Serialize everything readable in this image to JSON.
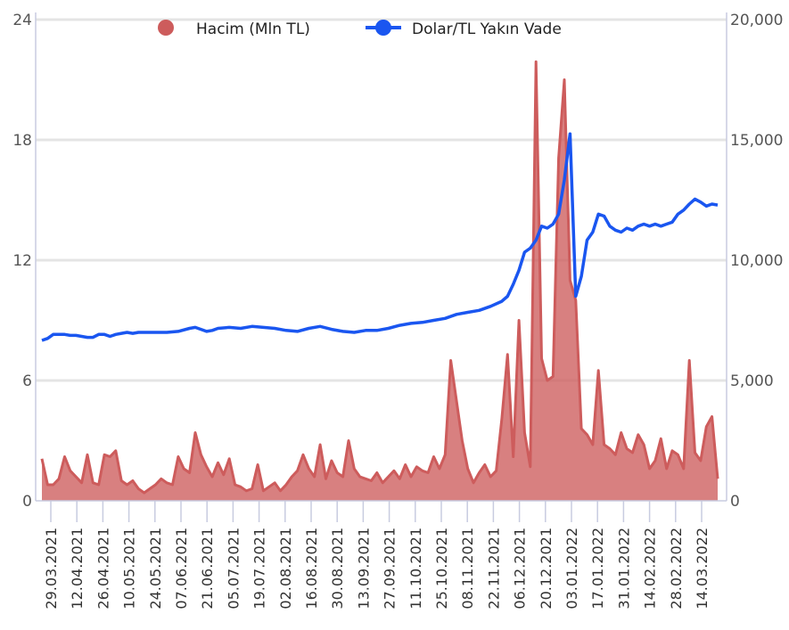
{
  "chart_data": {
    "type": "line",
    "legend": {
      "position": "top-center",
      "items": [
        {
          "name": "Hacim (Mln TL)",
          "color": "#cd5c5c",
          "marker": "circle"
        },
        {
          "name": "Dolar/TL Yakın Vade",
          "color": "#1a56f0",
          "marker": "line-circle"
        }
      ]
    },
    "y_left": {
      "min": 0,
      "max": 24,
      "ticks": [
        "0",
        "6",
        "12",
        "18",
        "24"
      ]
    },
    "y_right": {
      "min": 0,
      "max": 20000,
      "ticks": [
        "0",
        "5,000",
        "10,000",
        "15,000",
        "20,000"
      ]
    },
    "x_ticks": [
      "29.03.2021",
      "12.04.2021",
      "26.04.2021",
      "10.05.2021",
      "24.05.2021",
      "07.06.2021",
      "21.06.2021",
      "05.07.2021",
      "19.07.2021",
      "02.08.2021",
      "16.08.2021",
      "30.08.2021",
      "13.09.2021",
      "27.09.2021",
      "11.10.2021",
      "25.10.2021",
      "08.11.2021",
      "22.11.2021",
      "06.12.2021",
      "20.12.2021",
      "03.01.2022",
      "17.01.2022",
      "31.01.2022",
      "14.02.2022",
      "28.02.2022",
      "14.03.2022"
    ],
    "grid": true,
    "series": [
      {
        "name": "Dolar/TL Yakın Vade",
        "axis": "left",
        "type": "line",
        "color": "#1a56f0",
        "points": [
          [
            0,
            8.0
          ],
          [
            1,
            8.1
          ],
          [
            2,
            8.3
          ],
          [
            3,
            8.3
          ],
          [
            4,
            8.3
          ],
          [
            5,
            8.25
          ],
          [
            6,
            8.25
          ],
          [
            7,
            8.2
          ],
          [
            8,
            8.15
          ],
          [
            9,
            8.15
          ],
          [
            10,
            8.3
          ],
          [
            11,
            8.3
          ],
          [
            12,
            8.2
          ],
          [
            13,
            8.3
          ],
          [
            14,
            8.35
          ],
          [
            15,
            8.4
          ],
          [
            16,
            8.35
          ],
          [
            17,
            8.4
          ],
          [
            18,
            8.4
          ],
          [
            19,
            8.4
          ],
          [
            20,
            8.4
          ],
          [
            22,
            8.4
          ],
          [
            24,
            8.45
          ],
          [
            26,
            8.6
          ],
          [
            27,
            8.65
          ],
          [
            28,
            8.55
          ],
          [
            29,
            8.45
          ],
          [
            30,
            8.5
          ],
          [
            31,
            8.6
          ],
          [
            33,
            8.65
          ],
          [
            35,
            8.6
          ],
          [
            37,
            8.7
          ],
          [
            39,
            8.65
          ],
          [
            41,
            8.6
          ],
          [
            43,
            8.5
          ],
          [
            45,
            8.45
          ],
          [
            47,
            8.6
          ],
          [
            49,
            8.7
          ],
          [
            51,
            8.55
          ],
          [
            53,
            8.45
          ],
          [
            55,
            8.4
          ],
          [
            57,
            8.5
          ],
          [
            59,
            8.5
          ],
          [
            61,
            8.6
          ],
          [
            63,
            8.75
          ],
          [
            65,
            8.85
          ],
          [
            67,
            8.9
          ],
          [
            69,
            9.0
          ],
          [
            71,
            9.1
          ],
          [
            73,
            9.3
          ],
          [
            75,
            9.4
          ],
          [
            77,
            9.5
          ],
          [
            79,
            9.7
          ],
          [
            81,
            9.95
          ],
          [
            82,
            10.2
          ],
          [
            83,
            10.8
          ],
          [
            84,
            11.5
          ],
          [
            85,
            12.4
          ],
          [
            86,
            12.6
          ],
          [
            87,
            13.0
          ],
          [
            88,
            13.7
          ],
          [
            89,
            13.6
          ],
          [
            90,
            13.8
          ],
          [
            91,
            14.3
          ],
          [
            92,
            16.0
          ],
          [
            93,
            18.3
          ],
          [
            94,
            10.2
          ],
          [
            95,
            11.2
          ],
          [
            96,
            13.0
          ],
          [
            97,
            13.4
          ],
          [
            98,
            14.3
          ],
          [
            99,
            14.2
          ],
          [
            100,
            13.7
          ],
          [
            101,
            13.5
          ],
          [
            102,
            13.4
          ],
          [
            103,
            13.6
          ],
          [
            104,
            13.5
          ],
          [
            105,
            13.7
          ],
          [
            106,
            13.8
          ],
          [
            107,
            13.7
          ],
          [
            108,
            13.8
          ],
          [
            109,
            13.7
          ],
          [
            110,
            13.8
          ],
          [
            111,
            13.9
          ],
          [
            112,
            14.3
          ],
          [
            113,
            14.5
          ],
          [
            114,
            14.8
          ],
          [
            115,
            15.05
          ],
          [
            116,
            14.9
          ],
          [
            117,
            14.7
          ],
          [
            118,
            14.8
          ],
          [
            119,
            14.75
          ]
        ]
      },
      {
        "name": "Hacim (Mln TL)",
        "axis": "left",
        "type": "area",
        "color": "#cd5c5c",
        "points": [
          [
            0,
            2.1
          ],
          [
            1,
            0.8
          ],
          [
            2,
            0.8
          ],
          [
            3,
            1.1
          ],
          [
            4,
            2.2
          ],
          [
            5,
            1.5
          ],
          [
            6,
            1.2
          ],
          [
            7,
            0.9
          ],
          [
            8,
            2.3
          ],
          [
            9,
            0.9
          ],
          [
            10,
            0.8
          ],
          [
            11,
            2.3
          ],
          [
            12,
            2.2
          ],
          [
            13,
            2.5
          ],
          [
            14,
            1.0
          ],
          [
            15,
            0.8
          ],
          [
            16,
            1.0
          ],
          [
            17,
            0.6
          ],
          [
            18,
            0.4
          ],
          [
            19,
            0.6
          ],
          [
            20,
            0.8
          ],
          [
            21,
            1.1
          ],
          [
            22,
            0.9
          ],
          [
            23,
            0.8
          ],
          [
            24,
            2.2
          ],
          [
            25,
            1.6
          ],
          [
            26,
            1.4
          ],
          [
            27,
            3.4
          ],
          [
            28,
            2.3
          ],
          [
            29,
            1.7
          ],
          [
            30,
            1.2
          ],
          [
            31,
            1.9
          ],
          [
            32,
            1.3
          ],
          [
            33,
            2.1
          ],
          [
            34,
            0.8
          ],
          [
            35,
            0.7
          ],
          [
            36,
            0.5
          ],
          [
            37,
            0.6
          ],
          [
            38,
            1.8
          ],
          [
            39,
            0.5
          ],
          [
            40,
            0.7
          ],
          [
            41,
            0.9
          ],
          [
            42,
            0.5
          ],
          [
            43,
            0.8
          ],
          [
            44,
            1.2
          ],
          [
            45,
            1.5
          ],
          [
            46,
            2.3
          ],
          [
            47,
            1.6
          ],
          [
            48,
            1.2
          ],
          [
            49,
            2.8
          ],
          [
            50,
            1.1
          ],
          [
            51,
            2.0
          ],
          [
            52,
            1.4
          ],
          [
            53,
            1.2
          ],
          [
            54,
            3.0
          ],
          [
            55,
            1.6
          ],
          [
            56,
            1.2
          ],
          [
            57,
            1.1
          ],
          [
            58,
            1.0
          ],
          [
            59,
            1.4
          ],
          [
            60,
            0.9
          ],
          [
            61,
            1.2
          ],
          [
            62,
            1.5
          ],
          [
            63,
            1.1
          ],
          [
            64,
            1.8
          ],
          [
            65,
            1.2
          ],
          [
            66,
            1.7
          ],
          [
            67,
            1.5
          ],
          [
            68,
            1.4
          ],
          [
            69,
            2.2
          ],
          [
            70,
            1.6
          ],
          [
            71,
            2.3
          ],
          [
            72,
            7.0
          ],
          [
            73,
            5.0
          ],
          [
            74,
            3.0
          ],
          [
            75,
            1.6
          ],
          [
            76,
            0.9
          ],
          [
            77,
            1.4
          ],
          [
            78,
            1.8
          ],
          [
            79,
            1.2
          ],
          [
            80,
            1.5
          ],
          [
            81,
            4.1
          ],
          [
            82,
            7.3
          ],
          [
            83,
            2.2
          ],
          [
            84,
            9.0
          ],
          [
            85,
            3.4
          ],
          [
            86,
            1.7
          ],
          [
            87,
            21.9
          ],
          [
            88,
            7.1
          ],
          [
            89,
            6.0
          ],
          [
            90,
            6.2
          ],
          [
            91,
            17.1
          ],
          [
            92,
            21.0
          ],
          [
            93,
            11.0
          ],
          [
            94,
            10.0
          ],
          [
            95,
            3.6
          ],
          [
            96,
            3.3
          ],
          [
            97,
            2.8
          ],
          [
            98,
            6.5
          ],
          [
            99,
            2.8
          ],
          [
            100,
            2.6
          ],
          [
            101,
            2.3
          ],
          [
            102,
            3.4
          ],
          [
            103,
            2.6
          ],
          [
            104,
            2.4
          ],
          [
            105,
            3.3
          ],
          [
            106,
            2.8
          ],
          [
            107,
            1.6
          ],
          [
            108,
            2.0
          ],
          [
            109,
            3.1
          ],
          [
            110,
            1.6
          ],
          [
            111,
            2.5
          ],
          [
            112,
            2.3
          ],
          [
            113,
            1.6
          ],
          [
            114,
            7.0
          ],
          [
            115,
            2.4
          ],
          [
            116,
            2.0
          ],
          [
            117,
            3.7
          ],
          [
            118,
            4.2
          ],
          [
            119,
            1.1
          ]
        ]
      }
    ]
  }
}
